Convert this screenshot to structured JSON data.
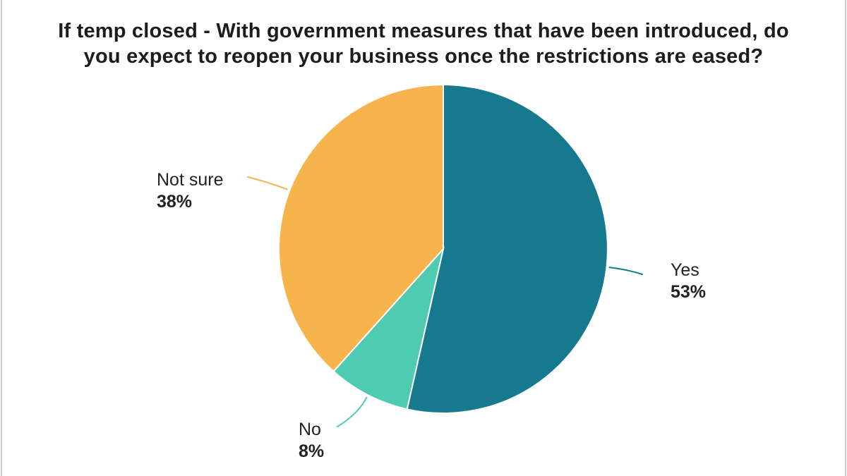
{
  "title": "If temp closed - With government measures that have been introduced, do you expect to reopen your business once the restrictions are eased?",
  "chart_data": {
    "type": "pie",
    "title": "If temp closed - With government measures that have been introduced, do you expect to reopen your business once the restrictions are eased?",
    "categories": [
      "Yes",
      "No",
      "Not sure"
    ],
    "values": [
      53,
      8,
      38
    ],
    "start_angle_deg": 0,
    "direction": "clockwise",
    "legend_position": "none",
    "label_style": "outside with leader lines",
    "slices": [
      {
        "label": "Yes",
        "value": 53,
        "display": "53%",
        "color": "#17798e"
      },
      {
        "label": "No",
        "value": 8,
        "display": "8%",
        "color": "#4fcbb1"
      },
      {
        "label": "Not sure",
        "value": 38,
        "display": "38%",
        "color": "#f8b44c"
      }
    ]
  }
}
